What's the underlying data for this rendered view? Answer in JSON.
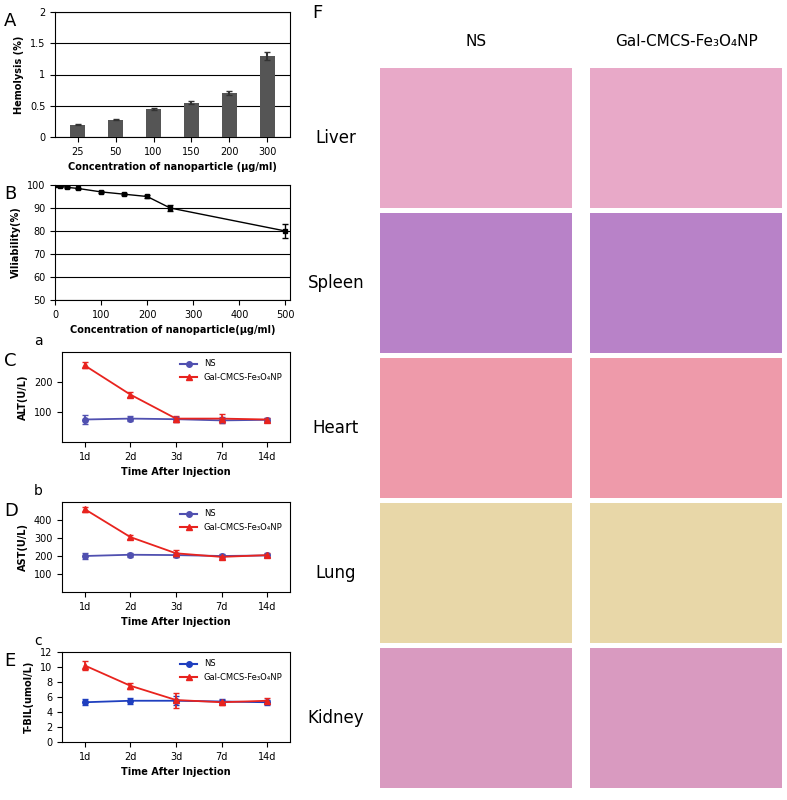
{
  "chart_data": [
    {
      "type": "bar",
      "annotations": [
        "A"
      ],
      "x_label": "Concentration of nanoparticle (μg/ml)",
      "y_label": "Hemolysis (%)",
      "categories": [
        "25",
        "50",
        "100",
        "150",
        "200",
        "300"
      ],
      "values": [
        0.2,
        0.28,
        0.45,
        0.55,
        0.7,
        1.3
      ],
      "error": [
        0.01,
        0.01,
        0.02,
        0.02,
        0.03,
        0.06
      ],
      "color": "#555555",
      "ylim": [
        0,
        2
      ],
      "yticks": [
        0,
        {
          "value": 0.5,
          "label": "0.5"
        },
        1,
        {
          "value": 1.5,
          "label": "1.5"
        },
        2
      ],
      "grid": true
    },
    {
      "type": "line",
      "annotations": [
        "B"
      ],
      "x_label": "Concentration of nanoparticle(μg/ml)",
      "y_label": "Viliability(%)",
      "x": [
        0,
        10,
        25,
        50,
        100,
        150,
        200,
        250,
        500
      ],
      "values": [
        100,
        99.5,
        99,
        98.5,
        97,
        96,
        95,
        90,
        80
      ],
      "error": [
        0.3,
        0.3,
        0.5,
        0.4,
        0.4,
        0.5,
        0.5,
        1.5,
        3
      ],
      "color": "#000000",
      "marker": "square",
      "xlim": [
        0,
        510
      ],
      "xticks": [
        0,
        100,
        200,
        300,
        400,
        500
      ],
      "ylim": [
        50,
        100
      ],
      "yticks": [
        50,
        60,
        70,
        80,
        90,
        100
      ],
      "grid": true
    },
    {
      "type": "line",
      "annotations": [
        "C",
        "a"
      ],
      "x_label": "Time After Injection",
      "y_label": "ALT(U/L)",
      "categories": [
        "1d",
        "2d",
        "3d",
        "7d",
        "14d"
      ],
      "series": [
        {
          "name": "NS",
          "color": "#5050b0",
          "marker": "circle",
          "values": [
            75,
            78,
            76,
            72,
            74
          ],
          "error": [
            15,
            8,
            8,
            10,
            6
          ]
        },
        {
          "name": "Gal-CMCS-Fe₃O₄NP",
          "color": "#e8231e",
          "marker": "triangle",
          "values": [
            255,
            158,
            78,
            78,
            75
          ],
          "error": [
            10,
            8,
            10,
            15,
            6
          ]
        }
      ],
      "ylim": [
        0,
        300
      ],
      "yticks": [
        100,
        200
      ],
      "legend": "upper right"
    },
    {
      "type": "line",
      "annotations": [
        "D",
        "b"
      ],
      "x_label": "Time After Injection",
      "y_label": "AST(U/L)",
      "categories": [
        "1d",
        "2d",
        "3d",
        "7d",
        "14d"
      ],
      "series": [
        {
          "name": "NS",
          "color": "#5050b0",
          "marker": "circle",
          "values": [
            200,
            207,
            205,
            200,
            203
          ],
          "error": [
            15,
            10,
            10,
            10,
            8
          ]
        },
        {
          "name": "Gal-CMCS-Fe₃O₄NP",
          "color": "#e8231e",
          "marker": "triangle",
          "values": [
            460,
            305,
            215,
            195,
            205
          ],
          "error": [
            15,
            10,
            20,
            10,
            10
          ]
        }
      ],
      "ylim": [
        0,
        500
      ],
      "yticks": [
        100,
        200,
        300,
        400
      ],
      "legend": "upper right"
    },
    {
      "type": "line",
      "annotations": [
        "E",
        "c"
      ],
      "x_label": "Time After Injection",
      "y_label": "T-BIL(umol/L)",
      "categories": [
        "1d",
        "2d",
        "3d",
        "7d",
        "14d"
      ],
      "series": [
        {
          "name": "NS",
          "color": "#1f3fbf",
          "marker": "circle",
          "values": [
            5.3,
            5.5,
            5.5,
            5.4,
            5.3
          ],
          "error": [
            0.4,
            0.4,
            0.6,
            0.3,
            0.3
          ]
        },
        {
          "name": "Gal-CMCS-Fe₃O₄NP",
          "color": "#e8231e",
          "marker": "triangle",
          "values": [
            10.2,
            7.5,
            5.6,
            5.3,
            5.5
          ],
          "error": [
            0.6,
            0.4,
            1.0,
            0.3,
            0.4
          ]
        }
      ],
      "ylim": [
        0,
        12
      ],
      "yticks": [
        0,
        2,
        4,
        6,
        8,
        10,
        12
      ],
      "legend": "upper right"
    }
  ],
  "histology": {
    "label": "F",
    "columns": [
      "NS",
      "Gal-CMCS-Fe₃O₄NP"
    ],
    "rows": [
      "Liver",
      "Spleen",
      "Heart",
      "Lung",
      "Kidney"
    ]
  }
}
